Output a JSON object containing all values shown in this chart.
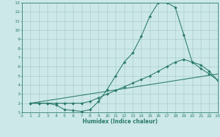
{
  "xlabel": "Humidex (Indice chaleur)",
  "bg_color": "#cce8e8",
  "grid_color": "#aacccc",
  "line_color": "#2a7a6a",
  "xlim": [
    0,
    23
  ],
  "ylim": [
    1,
    13
  ],
  "xticks": [
    0,
    1,
    2,
    3,
    4,
    5,
    6,
    7,
    8,
    9,
    10,
    11,
    12,
    13,
    14,
    15,
    16,
    17,
    18,
    19,
    20,
    21,
    22,
    23
  ],
  "yticks": [
    1,
    2,
    3,
    4,
    5,
    6,
    7,
    8,
    9,
    10,
    11,
    12,
    13
  ],
  "curve1_x": [
    1,
    2,
    3,
    4,
    5,
    6,
    7,
    8,
    9,
    10,
    11,
    12,
    13,
    14,
    15,
    16,
    17,
    18,
    19,
    20,
    21,
    22,
    23
  ],
  "curve1_y": [
    2,
    2,
    2,
    1.8,
    1.3,
    1.2,
    1.1,
    1.3,
    2.2,
    3.5,
    5.0,
    6.5,
    7.5,
    9.3,
    11.5,
    13.0,
    13.0,
    12.5,
    9.5,
    6.5,
    6.2,
    5.5,
    4.5
  ],
  "curve2_x": [
    1,
    2,
    3,
    4,
    5,
    6,
    7,
    8,
    9,
    10,
    11,
    12,
    13,
    14,
    15,
    16,
    17,
    18,
    19,
    20,
    21,
    22,
    23
  ],
  "curve2_y": [
    2,
    2,
    2,
    2,
    2,
    2,
    2,
    2.2,
    2.6,
    3.0,
    3.4,
    3.8,
    4.2,
    4.6,
    5.0,
    5.5,
    6.0,
    6.5,
    6.8,
    6.5,
    5.8,
    5.2,
    4.5
  ],
  "curve3_x": [
    1,
    23
  ],
  "curve3_y": [
    2.0,
    5.2
  ]
}
